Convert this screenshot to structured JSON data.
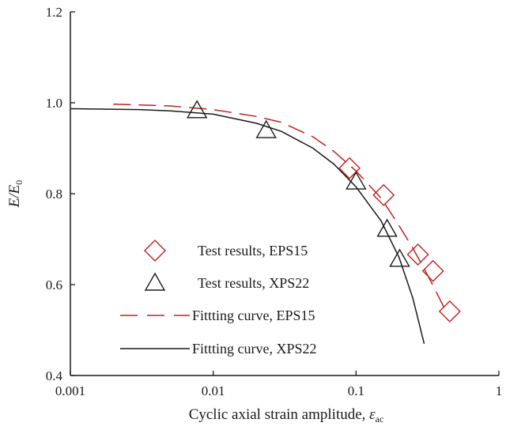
{
  "chart_data": {
    "type": "scatter",
    "xscale": "log",
    "xlim": [
      0.001,
      1
    ],
    "ylim": [
      0.4,
      1.2
    ],
    "xticks": [
      "0.001",
      "0.01",
      "0.1",
      "1"
    ],
    "xtick_values": [
      0.001,
      0.01,
      0.1,
      1
    ],
    "yticks": [
      "0.4",
      "0.6",
      "0.8",
      "1.0",
      "1.2"
    ],
    "ytick_values": [
      0.4,
      0.6,
      0.8,
      1.0,
      1.2
    ],
    "xlabel": "Cyclic axial strain amplitude, ",
    "xlabel_symbol": "ε",
    "xlabel_sub": "ac",
    "ylabel_main": "E/E",
    "ylabel_sub": "0",
    "legend_position": "bottom-center",
    "series": [
      {
        "name": "Test results, EPS15",
        "kind": "marker",
        "marker": "diamond",
        "color": "#c0211f",
        "x": [
          0.09,
          0.156,
          0.271,
          0.346,
          0.453
        ],
        "y": [
          0.856,
          0.797,
          0.666,
          0.63,
          0.541
        ]
      },
      {
        "name": "Test results, XPS22",
        "kind": "marker",
        "marker": "triangle",
        "color": "#1a1a1a",
        "x": [
          0.0077,
          0.0235,
          0.1,
          0.165,
          0.202
        ],
        "y": [
          0.983,
          0.939,
          0.826,
          0.722,
          0.656
        ]
      },
      {
        "name": "Fittting curve, EPS15",
        "kind": "line",
        "dash": true,
        "color": "#c0211f",
        "x": [
          0.002,
          0.005,
          0.01,
          0.02,
          0.03,
          0.05,
          0.07,
          0.1,
          0.15,
          0.2,
          0.25,
          0.3,
          0.35,
          0.42
        ],
        "y": [
          0.997,
          0.993,
          0.985,
          0.97,
          0.957,
          0.925,
          0.893,
          0.85,
          0.79,
          0.73,
          0.68,
          0.635,
          0.595,
          0.545
        ]
      },
      {
        "name": "Fittting curve, XPS22",
        "kind": "line",
        "dash": false,
        "color": "#1a1a1a",
        "x": [
          0.001,
          0.003,
          0.005,
          0.01,
          0.02,
          0.03,
          0.05,
          0.07,
          0.1,
          0.15,
          0.2,
          0.25,
          0.3
        ],
        "y": [
          0.987,
          0.985,
          0.982,
          0.975,
          0.955,
          0.937,
          0.9,
          0.865,
          0.815,
          0.74,
          0.66,
          0.57,
          0.47
        ]
      }
    ]
  }
}
